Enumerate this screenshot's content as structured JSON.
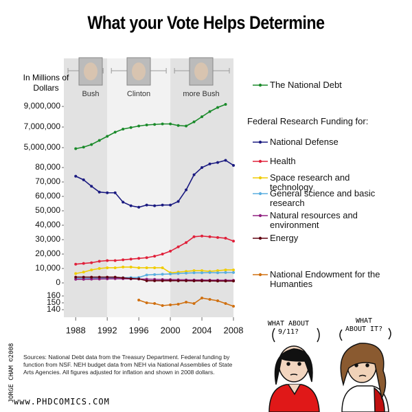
{
  "chart_data": [
    {
      "type": "line",
      "title": "What your Vote Helps Determine",
      "y_label": "In Millions of Dollars",
      "periods": [
        {
          "label": "Bush",
          "end": 1992,
          "color": "#e2e2e2"
        },
        {
          "label": "Clinton",
          "end": 2000,
          "color": "#f2f2f2"
        },
        {
          "label": "more Bush",
          "end": 2008,
          "color": "#e2e2e2"
        }
      ],
      "x": [
        1988,
        1989,
        1990,
        1991,
        1992,
        1993,
        1994,
        1995,
        1996,
        1997,
        1998,
        1999,
        2000,
        2001,
        2002,
        2003,
        2004,
        2005,
        2006,
        2007
      ],
      "series": [
        {
          "name": "The National Debt",
          "color": "#1a8a2a",
          "values": [
            4900000,
            5050000,
            5300000,
            5700000,
            6100000,
            6500000,
            6800000,
            6950000,
            7100000,
            7200000,
            7250000,
            7300000,
            7300000,
            7150000,
            7100000,
            7500000,
            8000000,
            8500000,
            8900000,
            9200000
          ]
        }
      ],
      "ylim": [
        4500000,
        9800000
      ],
      "yticks": [
        {
          "value": 5000000,
          "label": "5,000,000"
        },
        {
          "value": 7000000,
          "label": "7,000,000"
        },
        {
          "value": 9000000,
          "label": "9,000,000"
        }
      ]
    },
    {
      "type": "line",
      "legend_title": "Federal Research Funding for:",
      "x": [
        1988,
        1989,
        1990,
        1991,
        1992,
        1993,
        1994,
        1995,
        1996,
        1997,
        1998,
        1999,
        2000,
        2001,
        2002,
        2003,
        2004,
        2005,
        2006,
        2007,
        2008
      ],
      "series": [
        {
          "name": "National Defense",
          "color": "#1a1a80",
          "values": [
            74000,
            71500,
            67000,
            63000,
            62500,
            62500,
            56000,
            53500,
            52500,
            54000,
            53500,
            54000,
            54000,
            56500,
            64500,
            75000,
            80000,
            82500,
            83500,
            85000,
            81500
          ]
        },
        {
          "name": "Health",
          "color": "#e0203a",
          "values": [
            13000,
            13500,
            14000,
            15000,
            15500,
            15500,
            16000,
            16500,
            17000,
            17500,
            18500,
            20000,
            22000,
            25000,
            28000,
            32000,
            32500,
            32000,
            31500,
            31000,
            29000
          ]
        },
        {
          "name": "Space research and technology",
          "color": "#f0cc00",
          "values": [
            6500,
            7500,
            9000,
            10000,
            10500,
            10500,
            11000,
            11000,
            10500,
            10500,
            10500,
            10500,
            7000,
            7500,
            8000,
            8500,
            8500,
            8000,
            8500,
            9000,
            9000
          ]
        },
        {
          "name": "General science and basic research",
          "color": "#5aaee0",
          "values": [
            3000,
            3000,
            3200,
            3300,
            3400,
            3500,
            3600,
            3700,
            3800,
            5500,
            5800,
            6000,
            6200,
            6500,
            6800,
            7000,
            7000,
            7200,
            7000,
            7200,
            7200
          ]
        },
        {
          "name": "Natural resources and environment",
          "color": "#902080",
          "values": [
            2500,
            2500,
            2600,
            2700,
            2800,
            2900,
            2900,
            2800,
            2700,
            2600,
            2500,
            2400,
            2300,
            2200,
            2100,
            2000,
            2000,
            1900,
            1900,
            1800,
            1800
          ]
        },
        {
          "name": "Energy",
          "color": "#600010",
          "values": [
            4000,
            4000,
            4000,
            4000,
            4000,
            4000,
            3500,
            3000,
            2800,
            1500,
            1500,
            1500,
            1600,
            1500,
            1500,
            1400,
            1400,
            1400,
            1300,
            1300,
            1300
          ]
        }
      ],
      "ylim": [
        -2000,
        86000
      ],
      "yticks": [
        0,
        {
          "value": 10000,
          "label": "10,000"
        },
        {
          "value": 20000,
          "label": "20,000"
        },
        {
          "value": 30000,
          "label": "30,000"
        },
        {
          "value": 40000,
          "label": "40,000"
        },
        {
          "value": 50000,
          "label": "50,000"
        },
        {
          "value": 60000,
          "label": "60,000"
        },
        {
          "value": 70000,
          "label": "70,000"
        },
        {
          "value": 80000,
          "label": "80,000"
        }
      ]
    },
    {
      "type": "line",
      "x": [
        1996,
        1997,
        1998,
        1999,
        2000,
        2001,
        2002,
        2003,
        2004,
        2005,
        2006,
        2007,
        2008
      ],
      "series": [
        {
          "name": "National Endowment for the Humanties",
          "color": "#d07010",
          "values": [
            154,
            150,
            149,
            146,
            147,
            148,
            151,
            149,
            157,
            155,
            153,
            149,
            145
          ]
        }
      ],
      "ylim": [
        137,
        163
      ],
      "yticks": [
        140,
        150,
        160
      ],
      "xlim": [
        1986.5,
        2008
      ],
      "xticks": [
        1988,
        1992,
        1996,
        2000,
        2004,
        2008
      ]
    }
  ],
  "notes": {
    "sources": "Sources: National Debt data from the Treasury Department. Federal funding by function from NSF. NEH budget data from NEH via National Assemblies of State Arts Agencies. All figures adjusted for inflation and shown in 2008 dollars.",
    "credit": "JORGE CHAM ©2008",
    "url": "www.PHDCOMICS.COM",
    "bubbles": [
      "WHAT ABOUT 9/11?",
      "WHAT ABOUT IT?"
    ]
  }
}
